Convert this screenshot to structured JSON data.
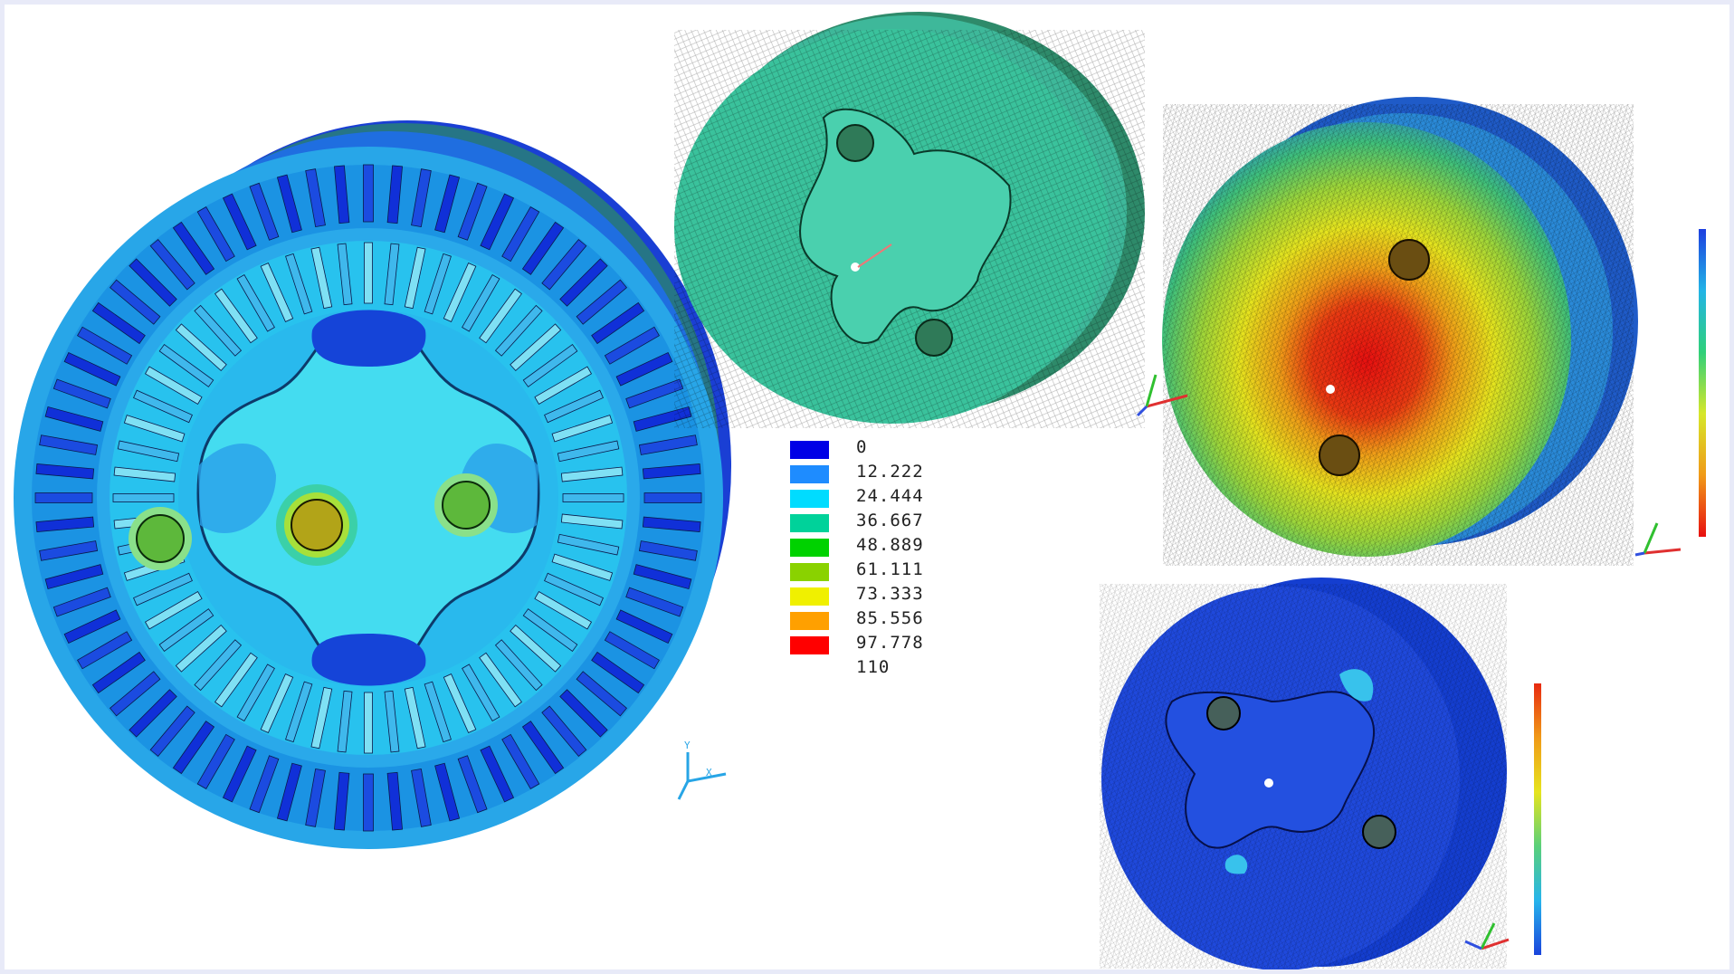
{
  "legend": {
    "entries": [
      {
        "label": "0",
        "color": "#0000e6"
      },
      {
        "label": "12.222",
        "color": "#1e8cff"
      },
      {
        "label": "24.444",
        "color": "#00dcff"
      },
      {
        "label": "36.667",
        "color": "#00d29a"
      },
      {
        "label": "48.889",
        "color": "#00d200"
      },
      {
        "label": "61.111",
        "color": "#8ad200"
      },
      {
        "label": "73.333",
        "color": "#f0f000"
      },
      {
        "label": "85.556",
        "color": "#ffa000"
      },
      {
        "label": "97.778",
        "color": "#ff0000"
      },
      {
        "label": "110",
        "color": ""
      }
    ]
  },
  "colors": {
    "deep_blue": "#0a2fd8",
    "mid_blue": "#1c8ee8",
    "light_cyan": "#27c4f0",
    "sea_green": "#3ab58d",
    "green": "#3fd04a",
    "yellow": "#e9e61f",
    "orange": "#f09a10",
    "red": "#e81010"
  }
}
